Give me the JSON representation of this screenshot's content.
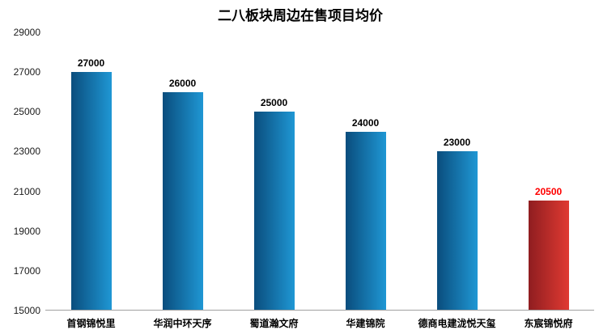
{
  "colors": {
    "bar_blue_dark": "#0a4d7d",
    "bar_blue_light": "#1f97d4",
    "bar_red_dark": "#8f1d20",
    "bar_red_light": "#e03a32",
    "value_label": "#000000",
    "highlight_label": "#ff0000",
    "axis_line": "#a0a0a0",
    "tick_label": "#1a1a1a"
  },
  "chart_data": {
    "type": "bar",
    "title": "二八板块周边在售项目均价",
    "categories": [
      "首钢锦悦里",
      "华润中环天序",
      "蜀道瀚文府",
      "华建锦院",
      "德商电建泷悦天玺",
      "东宸锦悦府"
    ],
    "values": [
      27000,
      26000,
      25000,
      24000,
      23000,
      20500
    ],
    "value_labels": [
      "27000",
      "26000",
      "25000",
      "24000",
      "23000",
      "20500"
    ],
    "bar_styles": [
      "blue",
      "blue",
      "blue",
      "blue",
      "blue",
      "red"
    ],
    "y_ticks": [
      "29000",
      "27000",
      "25000",
      "23000",
      "21000",
      "19000",
      "17000",
      "15000"
    ],
    "ylim": [
      15000,
      29000
    ],
    "xlabel": "",
    "ylabel": "",
    "grid": "off",
    "legend": "none"
  }
}
